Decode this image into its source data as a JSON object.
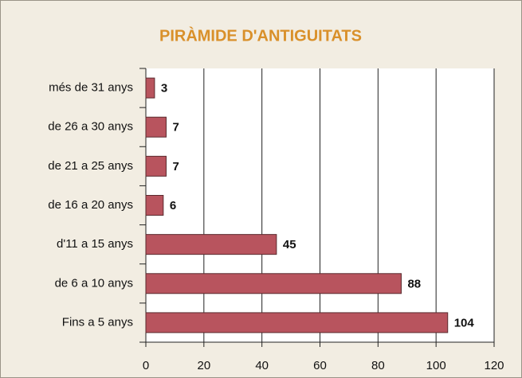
{
  "chart_data": {
    "type": "bar",
    "orientation": "horizontal",
    "title": "PIRÀMIDE D'ANTIGUITATS",
    "categories": [
      "més de 31 anys",
      "de 26 a 30 anys",
      "de 21 a 25 anys",
      "de 16 a 20 anys",
      "d'11 a 15 anys",
      "de 6 a 10 anys",
      "Fins a 5 anys"
    ],
    "values": [
      3,
      7,
      7,
      6,
      45,
      88,
      104
    ],
    "color": "#b8545e",
    "xlim": [
      0,
      120
    ],
    "xticks": [
      0,
      20,
      40,
      60,
      80,
      100,
      120
    ],
    "grid": true
  }
}
